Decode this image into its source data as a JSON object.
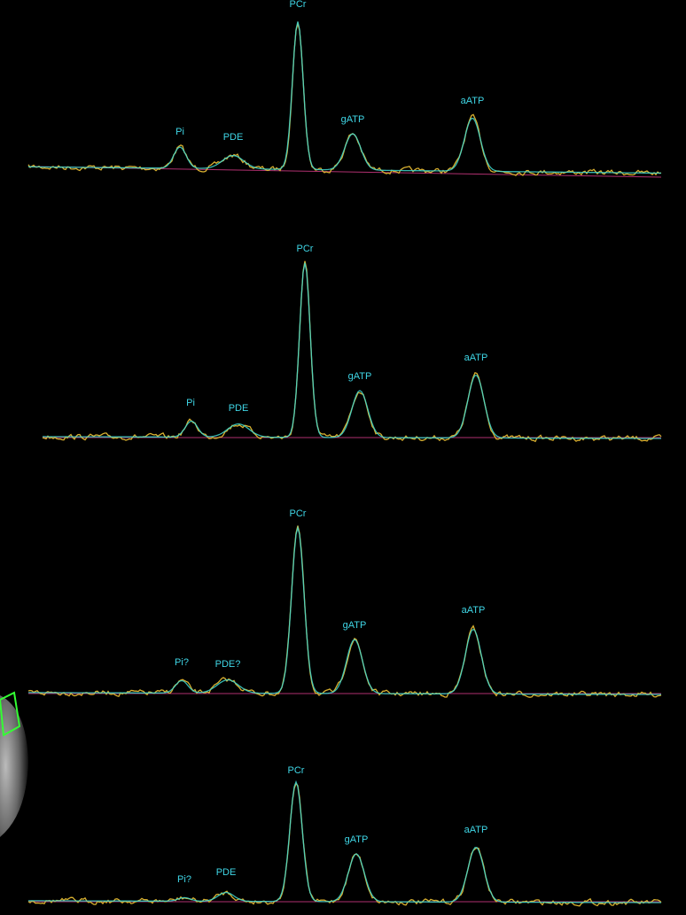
{
  "panels": [
    {
      "labels": [
        "Pi",
        "PDE",
        "PCr",
        "gATP",
        "aATP"
      ]
    },
    {
      "labels": [
        "Pi",
        "PDE",
        "PCr",
        "gATP",
        "aATP"
      ]
    },
    {
      "labels": [
        "Pi?",
        "PDE?",
        "PCr",
        "gATP",
        "aATP"
      ]
    },
    {
      "labels": [
        "Pi?",
        "PDE",
        "PCr",
        "gATP",
        "aATP"
      ]
    }
  ]
}
